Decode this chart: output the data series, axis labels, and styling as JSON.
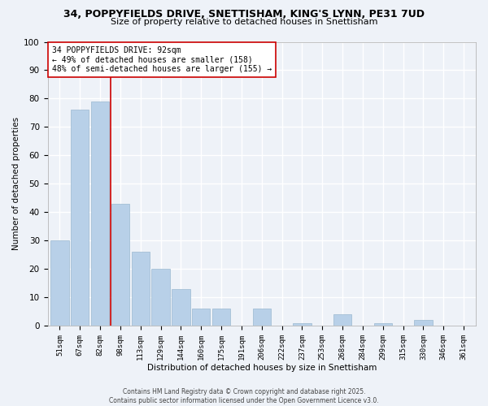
{
  "title": "34, POPPYFIELDS DRIVE, SNETTISHAM, KING'S LYNN, PE31 7UD",
  "subtitle": "Size of property relative to detached houses in Snettisham",
  "xlabel": "Distribution of detached houses by size in Snettisham",
  "ylabel": "Number of detached properties",
  "bar_color": "#b8d0e8",
  "bar_edge_color": "#9ab8d0",
  "background_color": "#eef2f8",
  "grid_color": "#ffffff",
  "categories": [
    "51sqm",
    "67sqm",
    "82sqm",
    "98sqm",
    "113sqm",
    "129sqm",
    "144sqm",
    "160sqm",
    "175sqm",
    "191sqm",
    "206sqm",
    "222sqm",
    "237sqm",
    "253sqm",
    "268sqm",
    "284sqm",
    "299sqm",
    "315sqm",
    "330sqm",
    "346sqm",
    "361sqm"
  ],
  "values": [
    30,
    76,
    79,
    43,
    26,
    20,
    13,
    6,
    6,
    0,
    6,
    0,
    1,
    0,
    4,
    0,
    1,
    0,
    2,
    0,
    0
  ],
  "ylim": [
    0,
    100
  ],
  "yticks": [
    0,
    10,
    20,
    30,
    40,
    50,
    60,
    70,
    80,
    90,
    100
  ],
  "vline_x": 2.5,
  "vline_color": "#cc0000",
  "annotation_line1": "34 POPPYFIELDS DRIVE: 92sqm",
  "annotation_line2": "← 49% of detached houses are smaller (158)",
  "annotation_line3": "48% of semi-detached houses are larger (155) →",
  "annotation_box_color": "#ffffff",
  "annotation_box_edge": "#cc0000",
  "footer_line1": "Contains HM Land Registry data © Crown copyright and database right 2025.",
  "footer_line2": "Contains public sector information licensed under the Open Government Licence v3.0."
}
